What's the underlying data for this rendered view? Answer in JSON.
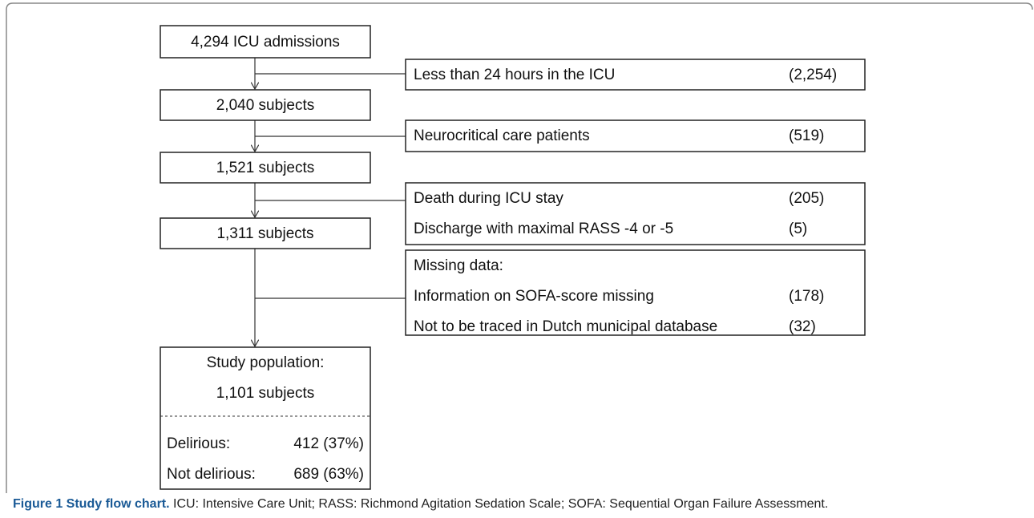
{
  "main_nodes": [
    {
      "label": "4,294 ICU admissions"
    },
    {
      "label": "2,040 subjects"
    },
    {
      "label": "1,521 subjects"
    },
    {
      "label": "1,311 subjects"
    }
  ],
  "final_node": {
    "title": "Study population:",
    "label": "1,101 subjects",
    "groups": [
      {
        "name": "Delirious:",
        "value": "412 (37%)"
      },
      {
        "name": "Not delirious:",
        "value": "689 (63%)"
      }
    ]
  },
  "exclusions": [
    {
      "items": [
        {
          "label": "Less than 24 hours in the ICU",
          "count": "(2,254)"
        }
      ]
    },
    {
      "items": [
        {
          "label": "Neurocritical care patients",
          "count": "(519)"
        }
      ]
    },
    {
      "items": [
        {
          "label": "Death during ICU stay",
          "count": "(205)"
        },
        {
          "label": "Discharge with maximal RASS -4 or -5",
          "count": "(5)"
        }
      ]
    },
    {
      "heading": "Missing data:",
      "items": [
        {
          "label": "Information on SOFA-score missing",
          "count": "(178)"
        },
        {
          "label": "Not to be traced in Dutch municipal database",
          "count": "(32)"
        }
      ]
    }
  ],
  "caption": {
    "title": "Figure 1 Study flow chart.",
    "text": "ICU: Intensive Care Unit; RASS: Richmond Agitation Sedation Scale; SOFA: Sequential Organ Failure Assessment."
  }
}
